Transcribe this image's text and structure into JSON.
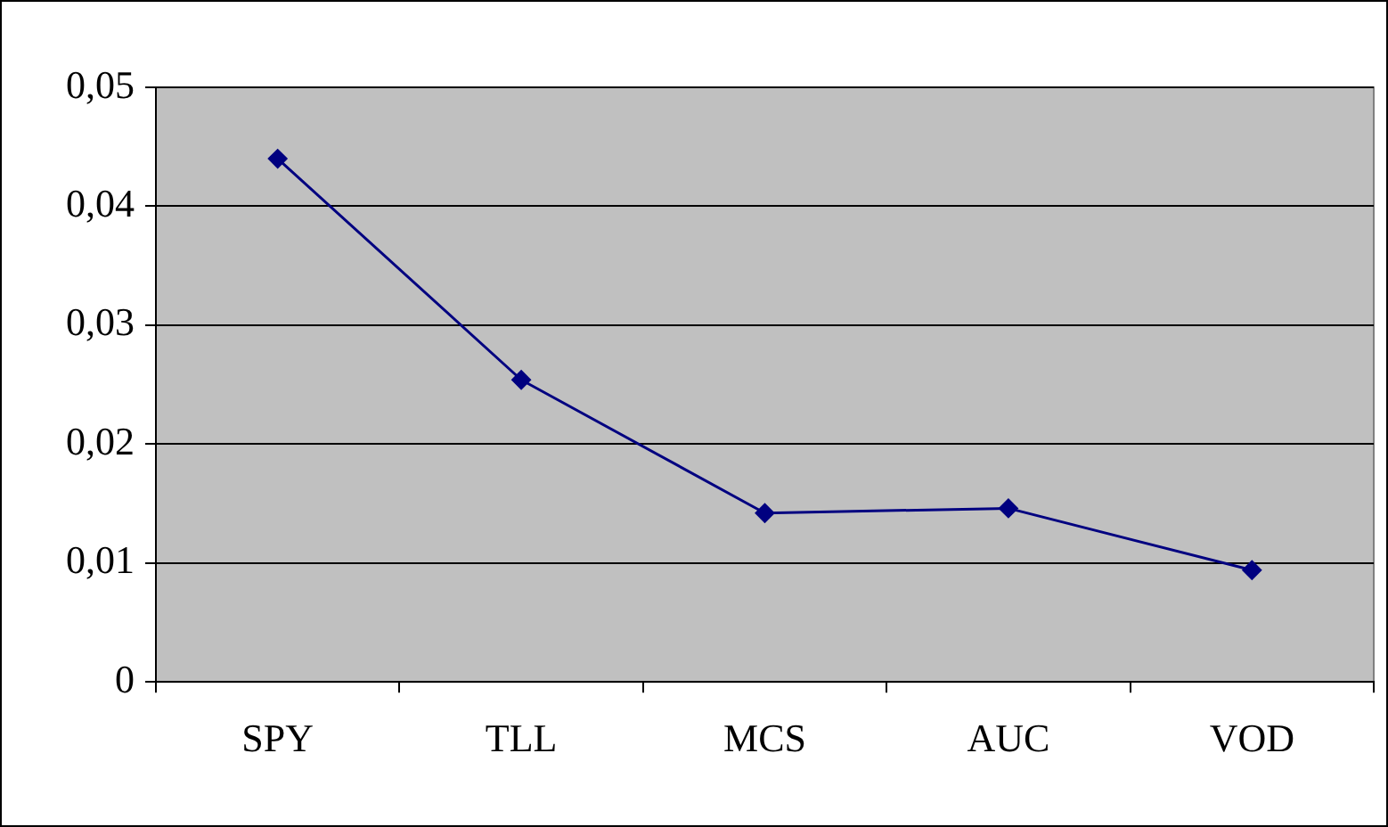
{
  "chart_data": {
    "type": "line",
    "categories": [
      "SPY",
      "TLL",
      "MCS",
      "AUC",
      "VOD"
    ],
    "series": [
      {
        "color": "#000080",
        "values": [
          0.044,
          0.0254,
          0.0142,
          0.0146,
          0.0094
        ]
      }
    ],
    "ylim": [
      0,
      0.05
    ],
    "yticks": [
      {
        "value": 0,
        "label": "0"
      },
      {
        "value": 0.01,
        "label": "0,01"
      },
      {
        "value": 0.02,
        "label": "0,02"
      },
      {
        "value": 0.03,
        "label": "0,03"
      },
      {
        "value": 0.04,
        "label": "0,04"
      },
      {
        "value": 0.05,
        "label": "0,05"
      }
    ],
    "grid": "y",
    "legend": false,
    "marker": "diamond",
    "line_style": "solid"
  }
}
